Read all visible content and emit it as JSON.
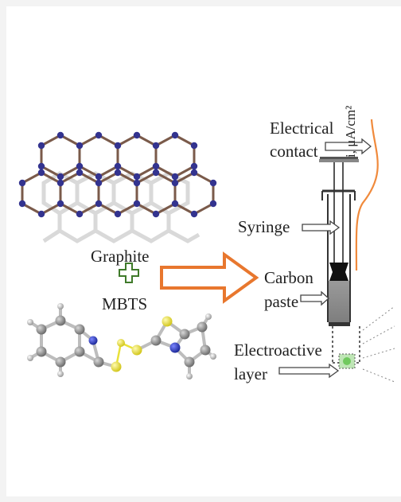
{
  "labels": {
    "graphite": "Graphite",
    "mbts": "MBTS",
    "electrical_contact_line1": "Electrical",
    "electrical_contact_line2": "contact",
    "syringe": "Syringe",
    "carbon_paste_line1": "Carbon",
    "carbon_paste_line2": "paste",
    "electroactive_line1": "Electroactive",
    "electroactive_line2": "layer",
    "current_axis": "i, μA/cm²"
  },
  "colors": {
    "bond_brown": "#7a5a4a",
    "atom_blue": "#33338f",
    "ghost_gray": "#d6d6d6",
    "plus_green": "#3f7a2a",
    "arrow_orange": "#e8772e",
    "curve_orange": "#f08a3c",
    "sulfur_yellow": "#e9e23a",
    "nitrogen_blue": "#2a35a8",
    "carbon_gray": "#8a8a8a"
  }
}
